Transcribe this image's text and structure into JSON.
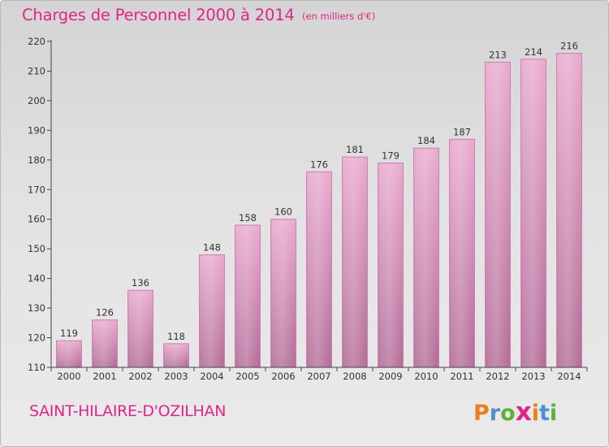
{
  "title": "Charges de Personnel 2000 à 2014",
  "subtitle": "(en milliers d'€)",
  "commune": "SAINT-HILAIRE-D'OZILHAN",
  "logo": {
    "text": "Proxiti",
    "colors": [
      "#f07d1b",
      "#4d8fd1",
      "#5fb037",
      "#e4238a",
      "#f07d1b",
      "#4d8fd1",
      "#5fb037"
    ]
  },
  "colors": {
    "accent": "#e4238a",
    "bar_top": "#e9a9cf",
    "bar_bottom": "#b36c98",
    "bar_edge": "#c886ae"
  },
  "chart_data": {
    "type": "bar",
    "categories": [
      "2000",
      "2001",
      "2002",
      "2003",
      "2004",
      "2005",
      "2006",
      "2007",
      "2008",
      "2009",
      "2010",
      "2011",
      "2012",
      "2013",
      "2014"
    ],
    "values": [
      119,
      126,
      136,
      118,
      148,
      158,
      160,
      176,
      181,
      179,
      184,
      187,
      213,
      214,
      216
    ],
    "title": "Charges de Personnel 2000 à 2014",
    "xlabel": "",
    "ylabel": "",
    "ylim": [
      110,
      220
    ],
    "yticks": [
      110,
      120,
      130,
      140,
      150,
      160,
      170,
      180,
      190,
      200,
      210,
      220
    ],
    "grid": false,
    "legend": "none"
  }
}
